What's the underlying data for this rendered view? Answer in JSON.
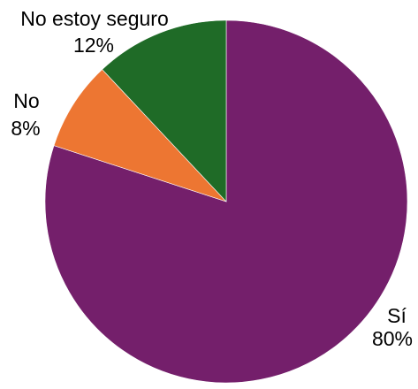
{
  "chart_data": {
    "type": "pie",
    "start_angle_deg": 0,
    "direction": "clockwise",
    "slices": [
      {
        "label": "Sí",
        "value": 80,
        "display": "80%",
        "color": "#741F6B"
      },
      {
        "label": "No",
        "value": 8,
        "display": "8%",
        "color": "#ED7632"
      },
      {
        "label": "No estoy seguro",
        "value": 12,
        "display": "12%",
        "color": "#1F6B27"
      }
    ]
  }
}
